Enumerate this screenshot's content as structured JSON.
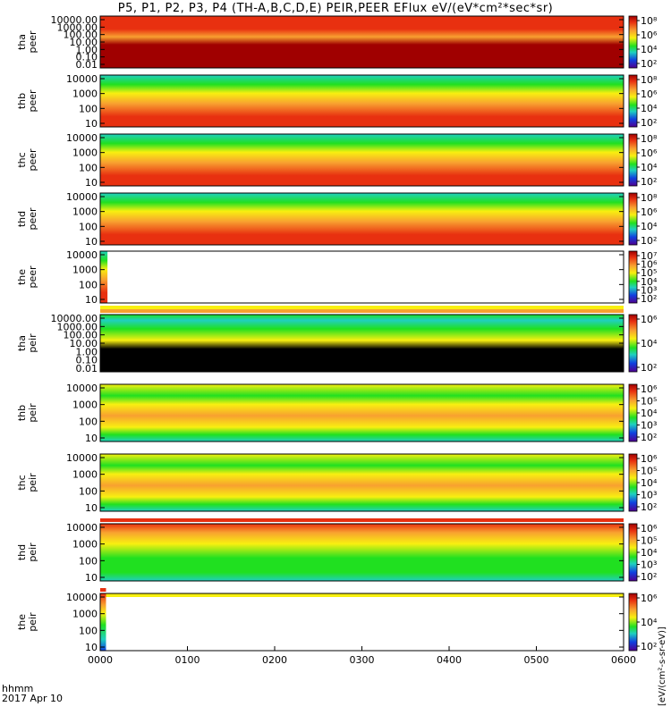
{
  "title": "P5, P1, P2, P3, P4 (TH-A,B,C,D,E) PEIR,PEER EFlux eV/(eV*cm²*sec*sr)",
  "footer": {
    "line1": "hhmm",
    "line2": "2017 Apr 10"
  },
  "colorbar_label": "[eV/(cm²-s-sr-eV)]",
  "colors": {
    "dark_red": "#a00000",
    "red": "#e83010",
    "orange": "#f8a030",
    "yellow": "#f8f010",
    "green": "#20e020",
    "cyan": "#20d0c0",
    "blue": "#1040e0",
    "purple": "#500090",
    "black": "#000000",
    "white": "#ffffff"
  },
  "chart_data": {
    "type": "heatmap",
    "x_axis": {
      "range": [
        "0000",
        "0600"
      ],
      "tick_labels": [
        "0000",
        "0100",
        "0200",
        "0300",
        "0400",
        "0500",
        "0600"
      ]
    },
    "panels": [
      {
        "id": "tha-peer",
        "ylabel": [
          "tha",
          "peer"
        ],
        "yticks": [
          "10000.00",
          "1000.00",
          "100.00",
          "10.00",
          "1.00",
          "0.10",
          "0.01"
        ],
        "cbar_ticks": [
          "10⁸",
          "10⁶",
          "10⁴",
          "10²"
        ],
        "data_end_hhmm": "0600",
        "bars": []
      },
      {
        "id": "thb-peer",
        "ylabel": [
          "thb",
          "peer"
        ],
        "yticks": [
          "10000",
          "1000",
          "100",
          "10"
        ],
        "cbar_ticks": [
          "10⁸",
          "10⁶",
          "10⁴",
          "10²"
        ],
        "data_end_hhmm": "0600",
        "bars": []
      },
      {
        "id": "thc-peer",
        "ylabel": [
          "thc",
          "peer"
        ],
        "yticks": [
          "10000",
          "1000",
          "100",
          "10"
        ],
        "cbar_ticks": [
          "10⁸",
          "10⁶",
          "10⁴",
          "10²"
        ],
        "data_end_hhmm": "0600",
        "bars": []
      },
      {
        "id": "thd-peer",
        "ylabel": [
          "thd",
          "peer"
        ],
        "yticks": [
          "10000",
          "1000",
          "100",
          "10"
        ],
        "cbar_ticks": [
          "10⁸",
          "10⁶",
          "10⁴",
          "10²"
        ],
        "data_end_hhmm": "0600",
        "bars": []
      },
      {
        "id": "the-peer",
        "ylabel": [
          "the",
          "peer"
        ],
        "yticks": [
          "10000",
          "1000",
          "100",
          "10"
        ],
        "cbar_ticks": [
          "10⁷",
          "10⁶",
          "10⁵",
          "10⁴",
          "10³",
          "10²"
        ],
        "data_end_hhmm": "0005",
        "bars": [
          "yellow"
        ]
      },
      {
        "id": "tha-peir",
        "ylabel": [
          "tha",
          "peir"
        ],
        "yticks": [
          "10000.00",
          "1000.00",
          "100.00",
          "10.00",
          "1.00",
          "0.10",
          "0.01"
        ],
        "cbar_ticks": [
          "10⁶",
          "10⁴",
          "10²"
        ],
        "data_end_hhmm": "0600",
        "bars": [
          "orange",
          "red"
        ]
      },
      {
        "id": "thb-peir",
        "ylabel": [
          "thb",
          "peir"
        ],
        "yticks": [
          "10000",
          "1000",
          "100",
          "10"
        ],
        "cbar_ticks": [
          "10⁶",
          "10⁵",
          "10⁴",
          "10³",
          "10²"
        ],
        "data_end_hhmm": "0600",
        "bars": []
      },
      {
        "id": "thc-peir",
        "ylabel": [
          "thc",
          "peir"
        ],
        "yticks": [
          "10000",
          "1000",
          "100",
          "10"
        ],
        "cbar_ticks": [
          "10⁶",
          "10⁵",
          "10⁴",
          "10³",
          "10²"
        ],
        "data_end_hhmm": "0600",
        "bars": [
          "red"
        ]
      },
      {
        "id": "thd-peir",
        "ylabel": [
          "thd",
          "peir"
        ],
        "yticks": [
          "10000",
          "1000",
          "100",
          "10"
        ],
        "cbar_ticks": [
          "10⁶",
          "10⁵",
          "10⁴",
          "10³",
          "10²"
        ],
        "data_end_hhmm": "0600",
        "bars": [
          "red_partial",
          "yellow"
        ]
      },
      {
        "id": "the-peir",
        "ylabel": [
          "the",
          "peir"
        ],
        "yticks": [
          "10000",
          "1000",
          "100",
          "10"
        ],
        "cbar_ticks": [
          "10⁶",
          "10⁴",
          "10²"
        ],
        "data_end_hhmm": "0004",
        "bars": []
      }
    ]
  }
}
